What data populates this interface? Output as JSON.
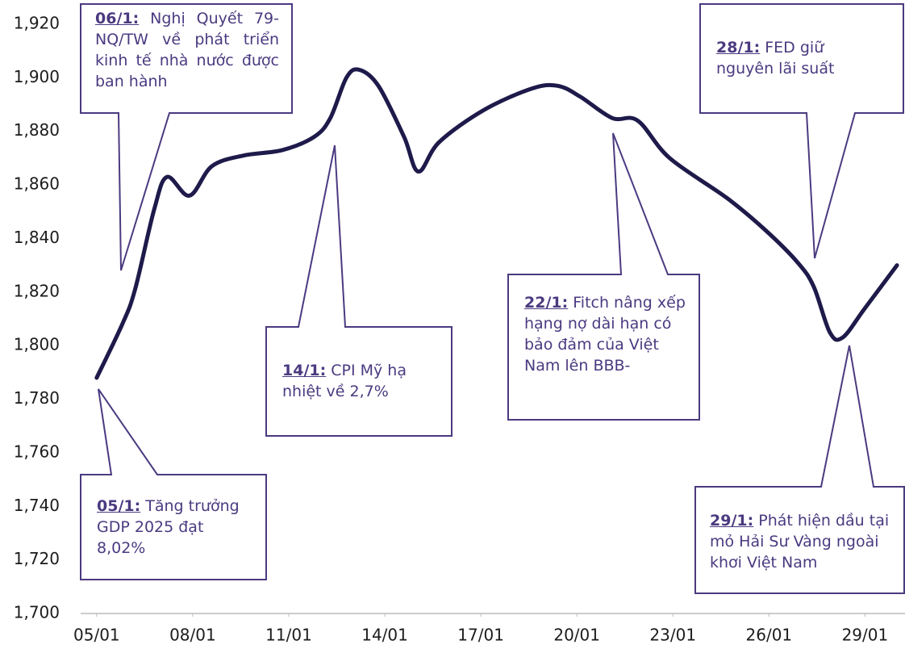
{
  "chart_data": {
    "type": "line",
    "x": [
      5,
      5.8,
      6.2,
      6.8,
      7.2,
      7.9,
      8.6,
      9.6,
      10.8,
      11.8,
      12.3,
      12.8,
      13.2,
      13.8,
      14.6,
      15.05,
      15.7,
      17.1,
      18.6,
      19.4,
      20.1,
      21.1,
      21.9,
      22.9,
      24.7,
      25.9,
      26.9,
      27.4,
      27.9,
      28.3,
      29.0,
      30.0
    ],
    "series": [
      {
        "color": "#1e1a4a",
        "values": [
          1788,
          1808,
          1821,
          1851,
          1863,
          1856,
          1867,
          1871,
          1873,
          1878,
          1885,
          1900,
          1903,
          1897,
          1878,
          1865,
          1876,
          1888,
          1896,
          1897,
          1893,
          1885,
          1884,
          1870,
          1855,
          1843,
          1831,
          1822,
          1805,
          1803,
          1814,
          1830
        ]
      }
    ],
    "xlim": [
      4.5,
      30.25
    ],
    "xticks": [
      {
        "value": 5,
        "label": "05/01"
      },
      {
        "value": 8,
        "label": "08/01"
      },
      {
        "value": 11,
        "label": "11/01"
      },
      {
        "value": 14,
        "label": "14/01"
      },
      {
        "value": 17,
        "label": "17/01"
      },
      {
        "value": 20,
        "label": "20/01"
      },
      {
        "value": 23,
        "label": "23/01"
      },
      {
        "value": 26,
        "label": "26/01"
      },
      {
        "value": 29,
        "label": "29/01"
      }
    ],
    "ylim": [
      1700,
      1920
    ],
    "yticks": [
      {
        "value": 1700,
        "label": "1,700"
      },
      {
        "value": 1720,
        "label": "1,720"
      },
      {
        "value": 1740,
        "label": "1,740"
      },
      {
        "value": 1760,
        "label": "1,760"
      },
      {
        "value": 1780,
        "label": "1,780"
      },
      {
        "value": 1800,
        "label": "1,800"
      },
      {
        "value": 1820,
        "label": "1,820"
      },
      {
        "value": 1840,
        "label": "1,840"
      },
      {
        "value": 1860,
        "label": "1,860"
      },
      {
        "value": 1880,
        "label": "1,880"
      },
      {
        "value": 1900,
        "label": "1,900"
      },
      {
        "value": 1920,
        "label": "1,920"
      }
    ],
    "grid": false,
    "annotations": [
      {
        "date": "06/1:",
        "text": "Nghị Quyết 79-NQ/TW về phát triển kinh tế nhà nước được ban hành"
      },
      {
        "date": "14/1:",
        "text": "CPI Mỹ hạ nhiệt về 2,7%"
      },
      {
        "date": "22/1:",
        "text": "Fitch nâng xếp hạng nợ dài hạn có bảo đảm của Việt Nam lên BBB-"
      },
      {
        "date": "28/1:",
        "text": "FED giữ nguyên lãi suất"
      },
      {
        "date": "05/1:",
        "text": "Tăng trưởng GDP 2025 đạt 8,02%"
      },
      {
        "date": "29/1:",
        "text": "Phát hiện dầu tại mỏ Hải Sư Vàng ngoài khơi Việt Nam"
      }
    ]
  }
}
